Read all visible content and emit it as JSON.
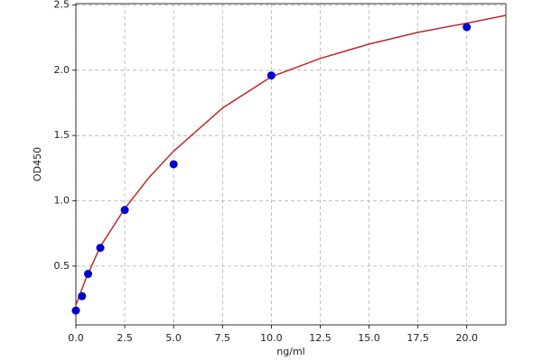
{
  "chart_data": {
    "type": "scatter",
    "x_label": "ng/ml",
    "y_label": "OD450",
    "xlim": [
      0,
      22
    ],
    "ylim": [
      0.05,
      2.51
    ],
    "xticks": [
      {
        "value": 0,
        "label": "0.0"
      },
      2.5,
      {
        "value": 5,
        "label": "5.0"
      },
      7.5,
      {
        "value": 10,
        "label": "10.0"
      },
      12.5,
      {
        "value": 15,
        "label": "15.0"
      },
      17.5,
      {
        "value": 20,
        "label": "20.0"
      }
    ],
    "yticks": [
      0.5,
      {
        "value": 1,
        "label": "1.0"
      },
      1.5,
      {
        "value": 2,
        "label": "2.0"
      },
      2.5
    ],
    "grid": true,
    "series": [
      {
        "marker": "o",
        "color": "#0000cd",
        "x": [
          0,
          0.3125,
          0.625,
          1.25,
          2.5,
          5,
          10,
          20
        ],
        "values": [
          0.16,
          0.27,
          0.44,
          0.64,
          0.93,
          1.28,
          1.96,
          2.33
        ]
      },
      {
        "marker": "line",
        "color": "#c0282a",
        "x": [
          0,
          0.5,
          1.25,
          2.5,
          3.75,
          5,
          7.5,
          10,
          12.5,
          15,
          17.5,
          20,
          22
        ],
        "values": [
          0.2,
          0.4,
          0.65,
          0.94,
          1.18,
          1.38,
          1.71,
          1.95,
          2.09,
          2.2,
          2.29,
          2.36,
          2.42
        ]
      }
    ]
  }
}
